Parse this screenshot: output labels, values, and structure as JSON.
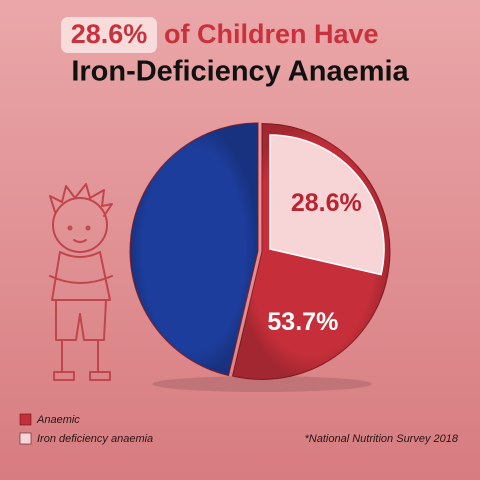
{
  "chart_data": {
    "type": "pie",
    "title": [
      "28.6%",
      "of Children Have",
      "Iron-Deficiency Anaemia"
    ],
    "categories": [
      "Anaemic",
      null
    ],
    "values": [
      53.7,
      46.3
    ],
    "value_labels": [
      "53.7%",
      null
    ],
    "colors": [
      "#c62f3a",
      "#1d3d9c"
    ],
    "highlight": {
      "name": "Iron deficiency anaemia",
      "value": 28.6,
      "value_label": "28.6%",
      "color": "#f7d5d6"
    },
    "source": "*National Nutrition Survey 2018"
  }
}
